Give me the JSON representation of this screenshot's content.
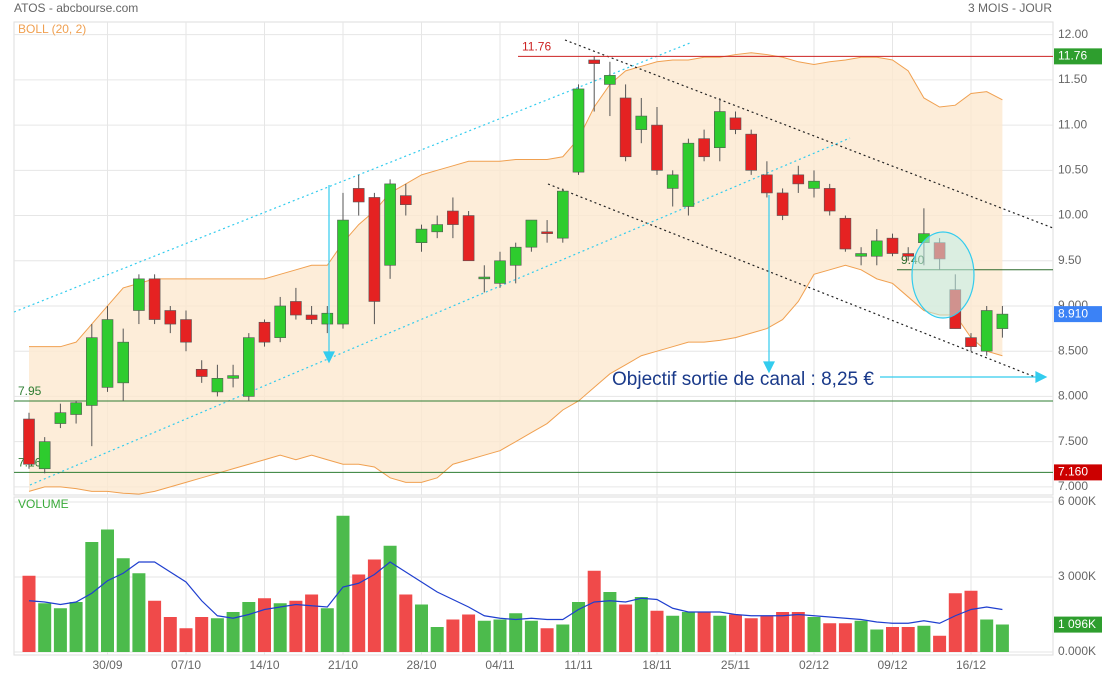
{
  "chart_data": {
    "type": "candlestick",
    "title": "ATOS - abcbourse.com",
    "period": "3 MOIS - JOUR",
    "indicator": "BOLL (20, 2)",
    "annotation": "Objectif sortie de canal : 8,25 €",
    "categories": [
      null,
      null,
      null,
      null,
      null,
      "30/09",
      null,
      null,
      null,
      null,
      "07/10",
      null,
      null,
      null,
      null,
      "14/10",
      null,
      null,
      null,
      null,
      "21/10",
      null,
      null,
      null,
      null,
      "28/10",
      null,
      null,
      null,
      null,
      "04/11",
      null,
      null,
      null,
      null,
      "11/11",
      null,
      null,
      null,
      null,
      "18/11",
      null,
      null,
      null,
      null,
      "25/11",
      null,
      null,
      null,
      null,
      "02/12",
      null,
      null,
      null,
      null,
      "09/12",
      null,
      null,
      null,
      null,
      "16/12",
      null,
      null
    ],
    "open": [
      7.75,
      7.2,
      7.7,
      7.8,
      7.9,
      8.1,
      8.15,
      8.95,
      9.3,
      8.95,
      8.85,
      8.3,
      8.05,
      8.2,
      8.0,
      8.82,
      8.65,
      9.05,
      8.9,
      8.8,
      8.8,
      10.3,
      10.2,
      9.45,
      10.22,
      9.7,
      9.82,
      10.05,
      10.0,
      9.3,
      9.25,
      9.45,
      9.65,
      9.82,
      9.75,
      10.48,
      11.72,
      11.45,
      11.3,
      10.95,
      11.0,
      10.3,
      10.1,
      10.85,
      10.75,
      11.08,
      10.9,
      10.45,
      10.25,
      10.45,
      10.3,
      10.3,
      9.97,
      9.55,
      9.55,
      9.75,
      9.58,
      9.7,
      9.7,
      9.18,
      8.65,
      8.5,
      8.75
    ],
    "high": [
      7.82,
      7.55,
      7.92,
      7.95,
      8.8,
      9.0,
      8.75,
      9.35,
      9.35,
      9.0,
      8.95,
      8.4,
      8.35,
      8.35,
      8.7,
      8.85,
      9.1,
      9.2,
      9.0,
      9.0,
      10.25,
      10.45,
      10.25,
      10.4,
      10.35,
      9.9,
      10.0,
      10.2,
      10.05,
      9.45,
      9.6,
      9.7,
      9.95,
      9.95,
      10.3,
      11.45,
      11.76,
      11.7,
      11.45,
      11.3,
      11.2,
      10.5,
      10.85,
      10.95,
      11.3,
      11.15,
      10.95,
      10.6,
      10.3,
      10.55,
      10.5,
      10.35,
      10.0,
      9.65,
      9.85,
      9.8,
      9.65,
      10.08,
      9.75,
      9.35,
      8.7,
      9.0,
      9.0
    ],
    "low": [
      7.2,
      7.15,
      7.65,
      7.7,
      7.45,
      8.05,
      7.95,
      8.8,
      8.8,
      8.7,
      8.5,
      8.15,
      8.0,
      8.1,
      7.95,
      8.55,
      8.6,
      8.85,
      8.8,
      8.7,
      8.75,
      10.0,
      8.8,
      9.3,
      10.0,
      9.6,
      9.75,
      9.75,
      9.5,
      9.15,
      9.2,
      9.25,
      9.6,
      9.7,
      9.7,
      10.45,
      11.15,
      11.1,
      10.6,
      10.8,
      10.45,
      10.1,
      10.0,
      10.6,
      10.6,
      10.9,
      10.45,
      10.2,
      9.95,
      10.25,
      10.2,
      10.0,
      9.6,
      9.45,
      9.45,
      9.55,
      9.5,
      9.45,
      9.4,
      8.75,
      8.5,
      8.45,
      8.65
    ],
    "close": [
      7.25,
      7.5,
      7.82,
      7.93,
      8.65,
      8.85,
      8.6,
      9.3,
      8.85,
      8.8,
      8.6,
      8.22,
      8.2,
      8.23,
      8.65,
      8.6,
      9.0,
      8.9,
      8.85,
      8.92,
      9.95,
      10.15,
      9.05,
      10.35,
      10.12,
      9.85,
      9.9,
      9.9,
      9.5,
      9.32,
      9.5,
      9.65,
      9.95,
      9.8,
      10.27,
      11.4,
      11.68,
      11.55,
      10.65,
      11.1,
      10.5,
      10.45,
      10.8,
      10.65,
      11.15,
      10.95,
      10.5,
      10.25,
      10.0,
      10.35,
      10.38,
      10.05,
      9.63,
      9.58,
      9.72,
      9.58,
      9.55,
      9.8,
      9.52,
      8.75,
      8.55,
      8.95,
      8.91
    ],
    "up_color": "#2ecc2e",
    "down_color": "#e52222",
    "bollinger": {
      "color": "#f0a050",
      "fill": "#fde8d0",
      "upper": [
        8.55,
        8.55,
        8.55,
        8.6,
        8.8,
        9.0,
        9.2,
        9.25,
        9.3,
        9.3,
        9.3,
        9.3,
        9.3,
        9.3,
        9.3,
        9.3,
        9.35,
        9.4,
        9.45,
        9.45,
        9.7,
        9.9,
        10.05,
        10.25,
        10.35,
        10.45,
        10.5,
        10.55,
        10.6,
        10.6,
        10.6,
        10.62,
        10.62,
        10.62,
        10.65,
        10.85,
        11.2,
        11.45,
        11.6,
        11.65,
        11.7,
        11.72,
        11.72,
        11.75,
        11.75,
        11.78,
        11.8,
        11.78,
        11.75,
        11.7,
        11.67,
        11.7,
        11.72,
        11.75,
        11.75,
        11.72,
        11.6,
        11.3,
        11.2,
        11.22,
        11.35,
        11.37,
        11.28
      ],
      "lower": [
        6.95,
        7.0,
        7.0,
        6.98,
        6.95,
        6.95,
        6.93,
        6.92,
        6.95,
        7.0,
        7.05,
        7.1,
        7.15,
        7.2,
        7.25,
        7.3,
        7.35,
        7.3,
        7.35,
        7.3,
        7.25,
        7.25,
        7.22,
        7.1,
        7.05,
        7.05,
        7.1,
        7.25,
        7.3,
        7.35,
        7.4,
        7.5,
        7.6,
        7.7,
        7.85,
        7.95,
        8.1,
        8.25,
        8.35,
        8.45,
        8.5,
        8.55,
        8.6,
        8.6,
        8.62,
        8.65,
        8.7,
        8.75,
        8.85,
        9.05,
        9.35,
        9.4,
        9.45,
        9.4,
        9.3,
        9.25,
        9.1,
        8.95,
        8.9,
        8.9,
        8.65,
        8.5,
        8.45
      ]
    },
    "ylim": [
      6.91,
      12.14
    ],
    "yticks": [
      {
        "value": 12,
        "label": "12.00"
      },
      {
        "value": 11.5,
        "label": "11.50"
      },
      {
        "value": 11,
        "label": "11.00"
      },
      {
        "value": 10.5,
        "label": "10.50"
      },
      {
        "value": 10,
        "label": "10.00"
      },
      {
        "value": 9.5,
        "label": "9.50"
      },
      {
        "value": 9,
        "label": "9.000"
      },
      {
        "value": 8.5,
        "label": "8.500"
      },
      {
        "value": 8,
        "label": "8.000"
      },
      {
        "value": 7.5,
        "label": "7.500"
      },
      {
        "value": 7,
        "label": "7.000"
      }
    ],
    "grid": true,
    "levels": [
      {
        "value": 11.76,
        "label": "11.76",
        "color": "#cc2222"
      },
      {
        "value": 7.95,
        "label": "7.95",
        "color": "#2e7d32"
      },
      {
        "value": 7.16,
        "label": "7.16",
        "color": "#2e7d32"
      },
      {
        "value": 9.4,
        "label": "9.40",
        "color": "#2e6b2e"
      }
    ],
    "markers": [
      {
        "value": 11.76,
        "label": "11.76",
        "color": "#2e9e2e"
      },
      {
        "value": 8.91,
        "label": "8.910",
        "color": "#3b82f6"
      },
      {
        "value": 7.16,
        "label": "7.160",
        "color": "#cc0000"
      }
    ],
    "volume": {
      "title": "VOLUME",
      "values": [
        3050,
        1950,
        1750,
        2000,
        4400,
        4900,
        3750,
        3150,
        2050,
        1400,
        950,
        1400,
        1350,
        1600,
        2000,
        2150,
        1950,
        2050,
        2300,
        1750,
        5450,
        3100,
        3700,
        4250,
        2300,
        1900,
        1000,
        1300,
        1500,
        1250,
        1300,
        1550,
        1250,
        950,
        1100,
        2000,
        3250,
        2400,
        1900,
        2200,
        1650,
        1450,
        1600,
        1600,
        1450,
        1500,
        1350,
        1450,
        1600,
        1600,
        1400,
        1150,
        1150,
        1250,
        900,
        1000,
        1000,
        1050,
        650,
        2350,
        2450,
        1300,
        1100
      ],
      "ma": [
        2050,
        2000,
        1900,
        2000,
        2350,
        2850,
        3150,
        3600,
        3600,
        3200,
        2800,
        2050,
        1450,
        1350,
        1500,
        1700,
        1800,
        1900,
        1850,
        1800,
        2600,
        2750,
        3100,
        3600,
        3200,
        2800,
        2400,
        2100,
        1800,
        1450,
        1350,
        1300,
        1350,
        1300,
        1300,
        1700,
        2000,
        2050,
        2000,
        2150,
        2100,
        1750,
        1600,
        1600,
        1600,
        1500,
        1450,
        1450,
        1450,
        1500,
        1450,
        1400,
        1350,
        1300,
        1200,
        1150,
        1150,
        1250,
        1150,
        1450,
        1700,
        1800,
        1700
      ],
      "ma_color": "#1f3fcf",
      "up_color": "#4cbb4c",
      "down_color": "#f04a4a",
      "ylim": [
        0,
        6000
      ],
      "yticks": [
        {
          "value": 6000,
          "label": "6 000K"
        },
        {
          "value": 3000,
          "label": "3 000K"
        },
        {
          "value": 0,
          "label": "0.000K"
        }
      ],
      "marker": {
        "value": 1096,
        "label": "1 096K",
        "color": "#2e9e2e"
      }
    }
  }
}
